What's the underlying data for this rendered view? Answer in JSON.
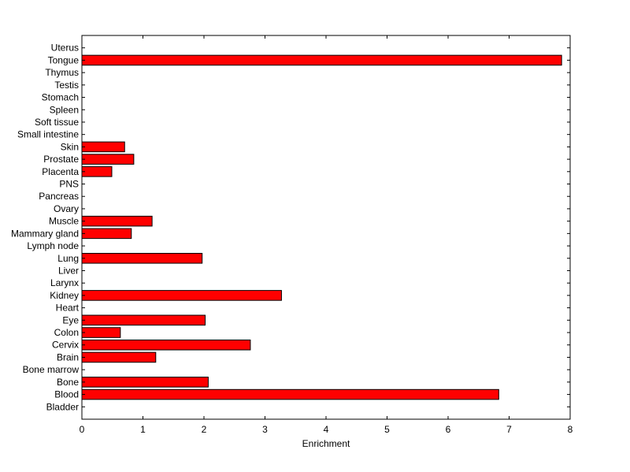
{
  "chart_data": {
    "type": "bar",
    "orientation": "horizontal",
    "categories": [
      "Bladder",
      "Blood",
      "Bone",
      "Bone marrow",
      "Brain",
      "Cervix",
      "Colon",
      "Eye",
      "Heart",
      "Kidney",
      "Larynx",
      "Liver",
      "Lung",
      "Lymph node",
      "Mammary gland",
      "Muscle",
      "Ovary",
      "Pancreas",
      "PNS",
      "Placenta",
      "Prostate",
      "Skin",
      "Small intestine",
      "Soft tissue",
      "Spleen",
      "Stomach",
      "Testis",
      "Thymus",
      "Tongue",
      "Uterus"
    ],
    "values": [
      0,
      6.83,
      2.07,
      0,
      1.21,
      2.76,
      0.63,
      2.02,
      0,
      3.27,
      0,
      0,
      1.97,
      0,
      0.81,
      1.15,
      0,
      0,
      0,
      0.49,
      0.85,
      0.7,
      0,
      0,
      0,
      0,
      0,
      0,
      7.86,
      0
    ],
    "xlabel": "Enrichment",
    "xlim": [
      0,
      8
    ],
    "xticks": [
      0,
      1,
      2,
      3,
      4,
      5,
      6,
      7,
      8
    ],
    "bar_color": "#ff0000",
    "bar_edge_color": "#000000",
    "grid": false
  }
}
